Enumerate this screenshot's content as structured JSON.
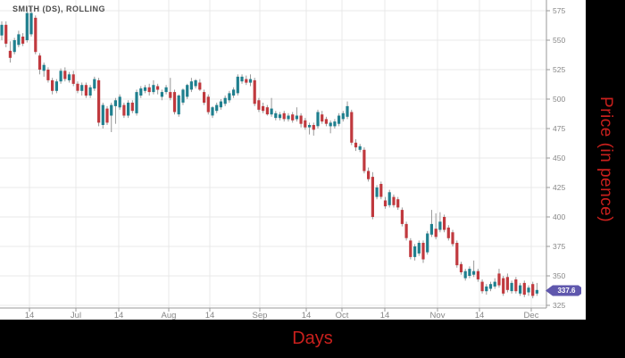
{
  "title": "SMITH (DS), ROLLING",
  "x_axis_title": "Days",
  "y_axis_title": "Price (in pence)",
  "last_price_badge": "337.6",
  "colors": {
    "candle_up": "#1f7f8e",
    "candle_down": "#c0393e",
    "wick": "#999999",
    "grid": "#e8e8e8",
    "axis": "#9a9a9a",
    "tick_label": "#878787",
    "axis_title_red": "#c9201d",
    "badge": "#5f57ad",
    "plot_background": "#ffffff",
    "page_background": "#000000"
  },
  "chart_data": {
    "type": "candlestick",
    "title": "SMITH (DS), ROLLING",
    "xlabel": "Days",
    "ylabel": "Price (in pence)",
    "legend": "none",
    "grid": true,
    "y_axis": {
      "min": 325,
      "max": 575,
      "step": 25,
      "ticks": [
        575,
        550,
        525,
        500,
        475,
        450,
        425,
        400,
        375,
        350,
        325
      ]
    },
    "x_ticks": [
      {
        "label": "14",
        "x": 33
      },
      {
        "label": "Jul",
        "x": 85
      },
      {
        "label": "14",
        "x": 133
      },
      {
        "label": "Aug",
        "x": 189
      },
      {
        "label": "14",
        "x": 235
      },
      {
        "label": "Sep",
        "x": 291
      },
      {
        "label": "14",
        "x": 343
      },
      {
        "label": "Oct",
        "x": 383
      },
      {
        "label": "14",
        "x": 431
      },
      {
        "label": "Nov",
        "x": 490
      },
      {
        "label": "14",
        "x": 537
      },
      {
        "label": "Dec",
        "x": 595
      }
    ],
    "last_price": 337.6,
    "candles_format": [
      "open",
      "high",
      "low",
      "close"
    ],
    "candles": [
      [
        554,
        566,
        550,
        563
      ],
      [
        563,
        566,
        544,
        547
      ],
      [
        541,
        549,
        531,
        535
      ],
      [
        540,
        552,
        538,
        550
      ],
      [
        546,
        558,
        544,
        555
      ],
      [
        553,
        556,
        545,
        547
      ],
      [
        550,
        578,
        548,
        573
      ],
      [
        555,
        578,
        553,
        573
      ],
      [
        569,
        571,
        538,
        540
      ],
      [
        537,
        539,
        521,
        525
      ],
      [
        524,
        531,
        519,
        529
      ],
      [
        525,
        527,
        514,
        516
      ],
      [
        516,
        518,
        504,
        507
      ],
      [
        507,
        517,
        505,
        515
      ],
      [
        515,
        526,
        513,
        524
      ],
      [
        524,
        527,
        515,
        517
      ],
      [
        516,
        523,
        514,
        521
      ],
      [
        521,
        524,
        511,
        513
      ],
      [
        513,
        515,
        505,
        507
      ],
      [
        507,
        514,
        503,
        512
      ],
      [
        512,
        514,
        501,
        503
      ],
      [
        503,
        512,
        501,
        510
      ],
      [
        509,
        519,
        507,
        517
      ],
      [
        516,
        518,
        477,
        480
      ],
      [
        478,
        497,
        475,
        495
      ],
      [
        492,
        494,
        478,
        480
      ],
      [
        486,
        497,
        472,
        495
      ],
      [
        494,
        501,
        479,
        499
      ],
      [
        493,
        504,
        491,
        502
      ],
      [
        495,
        497,
        484,
        486
      ],
      [
        486,
        499,
        484,
        497
      ],
      [
        497,
        499,
        488,
        490
      ],
      [
        488,
        508,
        486,
        506
      ],
      [
        503,
        511,
        501,
        509
      ],
      [
        507,
        512,
        505,
        510
      ],
      [
        510,
        513,
        503,
        506
      ],
      [
        506,
        516,
        504,
        512
      ],
      [
        511,
        513,
        504,
        508
      ],
      [
        502,
        508,
        499,
        506
      ],
      [
        506,
        512,
        504,
        510
      ],
      [
        506,
        518,
        499,
        501
      ],
      [
        506,
        508,
        487,
        489
      ],
      [
        487,
        504,
        485,
        503
      ],
      [
        497,
        509,
        495,
        508
      ],
      [
        502,
        513,
        500,
        512
      ],
      [
        508,
        518,
        506,
        515
      ],
      [
        511,
        517,
        509,
        516
      ],
      [
        514,
        517,
        507,
        508
      ],
      [
        506,
        508,
        495,
        497
      ],
      [
        502,
        504,
        487,
        489
      ],
      [
        486,
        494,
        484,
        493
      ],
      [
        490,
        497,
        488,
        495
      ],
      [
        493,
        500,
        491,
        498
      ],
      [
        496,
        503,
        494,
        501
      ],
      [
        499,
        507,
        497,
        505
      ],
      [
        503,
        510,
        501,
        508
      ],
      [
        505,
        521,
        503,
        519
      ],
      [
        515,
        521,
        513,
        519
      ],
      [
        517,
        520,
        512,
        514
      ],
      [
        514,
        521,
        511,
        517
      ],
      [
        516,
        518,
        494,
        496
      ],
      [
        499,
        501,
        489,
        491
      ],
      [
        494,
        497,
        488,
        490
      ],
      [
        493,
        495,
        486,
        487
      ],
      [
        487,
        501,
        485,
        492
      ],
      [
        484,
        490,
        482,
        488
      ],
      [
        484,
        489,
        482,
        487
      ],
      [
        488,
        490,
        481,
        483
      ],
      [
        483,
        488,
        481,
        486
      ],
      [
        487,
        489,
        480,
        482
      ],
      [
        483,
        493,
        481,
        486
      ],
      [
        486,
        488,
        476,
        479
      ],
      [
        482,
        484,
        474,
        476
      ],
      [
        476,
        480,
        470,
        478
      ],
      [
        478,
        480,
        469,
        474
      ],
      [
        477,
        491,
        475,
        489
      ],
      [
        487,
        490,
        479,
        481
      ],
      [
        483,
        485,
        477,
        479
      ],
      [
        477,
        482,
        471,
        480
      ],
      [
        477,
        483,
        475,
        481
      ],
      [
        479,
        488,
        477,
        486
      ],
      [
        483,
        490,
        481,
        488
      ],
      [
        485,
        498,
        483,
        494
      ],
      [
        489,
        491,
        461,
        463
      ],
      [
        463,
        466,
        456,
        459
      ],
      [
        457,
        462,
        455,
        460
      ],
      [
        457,
        459,
        437,
        439
      ],
      [
        439,
        442,
        430,
        432
      ],
      [
        434,
        438,
        398,
        400
      ],
      [
        417,
        427,
        415,
        425
      ],
      [
        428,
        430,
        415,
        417
      ],
      [
        414,
        417,
        407,
        409
      ],
      [
        410,
        423,
        408,
        421
      ],
      [
        417,
        419,
        408,
        410
      ],
      [
        415,
        417,
        406,
        408
      ],
      [
        406,
        408,
        392,
        394
      ],
      [
        394,
        396,
        380,
        382
      ],
      [
        380,
        382,
        364,
        366
      ],
      [
        366,
        377,
        363,
        375
      ],
      [
        369,
        380,
        367,
        378
      ],
      [
        378,
        380,
        361,
        364
      ],
      [
        370,
        388,
        368,
        386
      ],
      [
        385,
        406,
        383,
        394
      ],
      [
        390,
        403,
        381,
        383
      ],
      [
        389,
        404,
        387,
        396
      ],
      [
        400,
        402,
        387,
        389
      ],
      [
        391,
        393,
        380,
        382
      ],
      [
        387,
        389,
        375,
        377
      ],
      [
        378,
        380,
        357,
        359
      ],
      [
        360,
        362,
        351,
        353
      ],
      [
        348,
        356,
        346,
        354
      ],
      [
        350,
        358,
        348,
        356
      ],
      [
        351,
        363,
        349,
        354
      ],
      [
        354,
        356,
        345,
        347
      ],
      [
        345,
        347,
        335,
        337
      ],
      [
        337,
        343,
        334,
        341
      ],
      [
        339,
        345,
        337,
        343
      ],
      [
        341,
        348,
        339,
        345
      ],
      [
        352,
        356,
        340,
        342
      ],
      [
        348,
        350,
        333,
        335
      ],
      [
        349,
        352,
        336,
        338
      ],
      [
        337,
        346,
        335,
        344
      ],
      [
        347,
        349,
        335,
        337
      ],
      [
        335,
        344,
        333,
        342
      ],
      [
        344,
        346,
        332,
        334
      ],
      [
        336,
        342,
        333,
        340
      ],
      [
        343,
        345,
        331,
        333
      ],
      [
        335,
        344,
        333,
        338
      ]
    ]
  }
}
